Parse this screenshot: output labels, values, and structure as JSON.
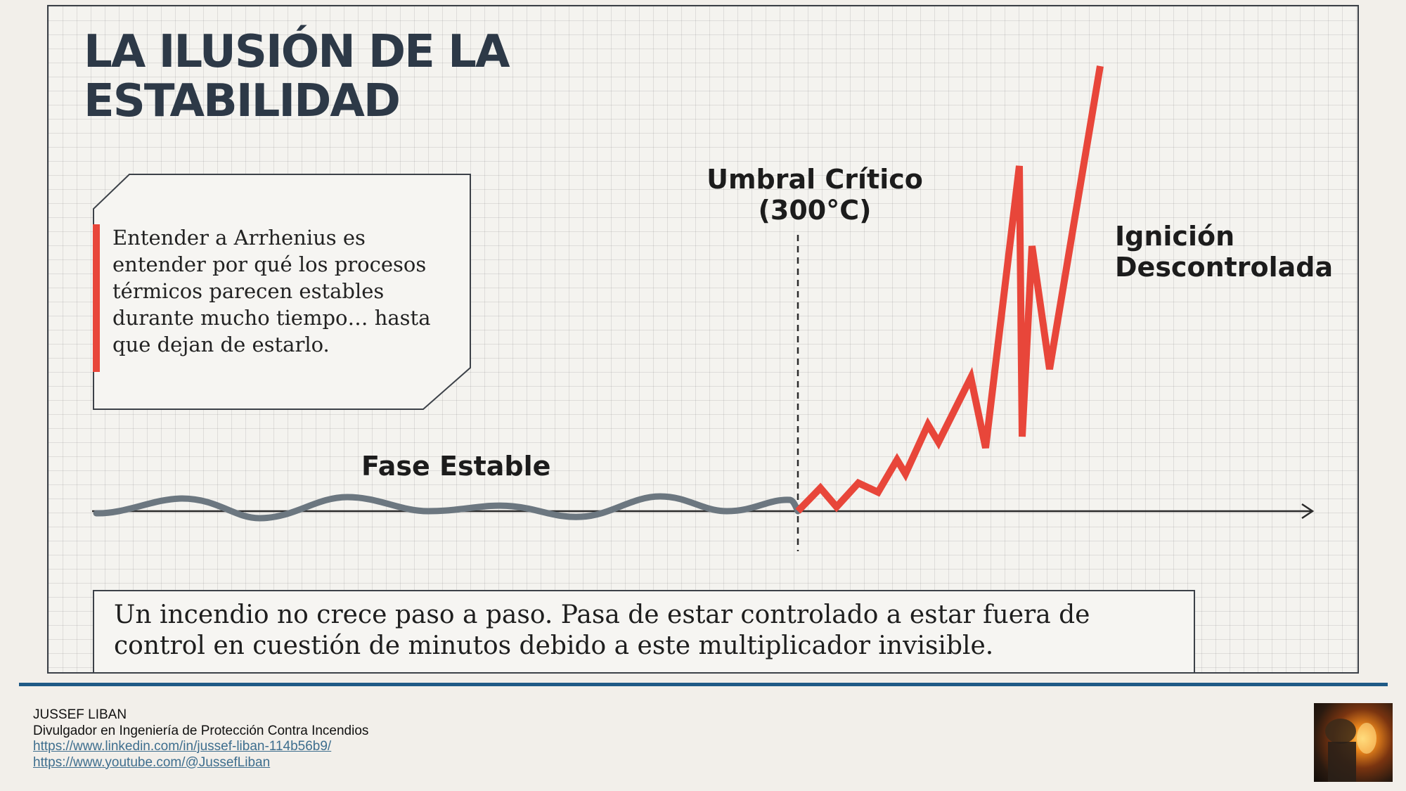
{
  "slide": {
    "title_line1": "LA ILUSIÓN DE LA",
    "title_line2": "ESTABILIDAD",
    "callout_text": "Entender a Arrhenius es entender por qué los procesos térmicos parecen estables durante mucho tiempo… hasta que dejan de estarlo.",
    "threshold_label_line1": "Umbral Crítico",
    "threshold_label_line2": "(300°C)",
    "ignition_label_line1": "Ignición",
    "ignition_label_line2": "Descontrolada",
    "stable_label": "Fase Estable",
    "bottom_text": "Un incendio no crece paso a paso. Pasa de estar controlado a estar fuera de control en cuestión de minutos debido a este multiplicador invisible."
  },
  "colors": {
    "stable_line": "#6c7780",
    "ignition_line": "#e8463a",
    "accent_bar": "#e8463a",
    "title": "#2d3947",
    "divider": "#1f5a86"
  },
  "footer": {
    "name": "JUSSEF LIBAN",
    "role": "Divulgador en Ingeniería de Protección Contra Incendios",
    "linkedin": "https://www.linkedin.com/in/jussef-liban-114b56b9/",
    "youtube": "https://www.youtube.com/@JussefLiban"
  },
  "icons": {
    "author_photo": "firefighter-photo-icon"
  }
}
